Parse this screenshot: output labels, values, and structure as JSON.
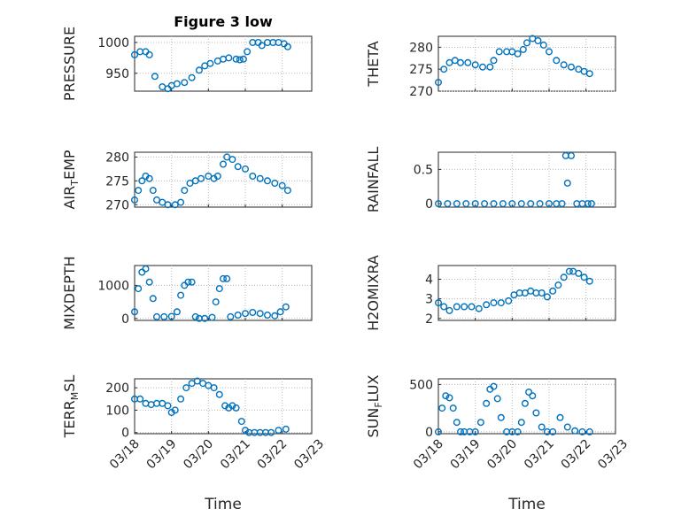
{
  "figure": {
    "title": "Figure 3 low",
    "xlabel": "Time"
  },
  "style": {
    "marker_color": "#0072BD"
  },
  "chart_data": [
    {
      "type": "scatter",
      "marker": "circle",
      "grid": true,
      "title": "Figure 3 low",
      "ylabel": "PRESSURE",
      "xlim": [
        "03/18",
        "03/22.8"
      ],
      "ylim": [
        921,
        1010
      ],
      "yticks": [
        950,
        1000
      ],
      "x": [
        "03/18.00",
        "03/18.15",
        "03/18.30",
        "03/18.40",
        "03/18.55",
        "03/18.75",
        "03/18.90",
        "03/19.00",
        "03/19.15",
        "03/19.35",
        "03/19.55",
        "03/19.75",
        "03/19.90",
        "03/20.05",
        "03/20.25",
        "03/20.40",
        "03/20.55",
        "03/20.75",
        "03/20.85",
        "03/20.95",
        "03/21.05",
        "03/21.20",
        "03/21.35",
        "03/21.45",
        "03/21.60",
        "03/21.75",
        "03/21.90",
        "03/22.05",
        "03/22.15"
      ],
      "y": [
        980,
        985,
        985,
        980,
        945,
        928,
        925,
        930,
        933,
        935,
        943,
        955,
        962,
        966,
        970,
        973,
        975,
        973,
        972,
        973,
        985,
        1000,
        1000,
        995,
        1000,
        1000,
        1000,
        998,
        993
      ]
    },
    {
      "type": "scatter",
      "marker": "circle",
      "grid": true,
      "ylabel": "THETA",
      "xlim": [
        "03/18",
        "03/22.8"
      ],
      "ylim": [
        270,
        282.5
      ],
      "yticks": [
        270,
        275,
        280
      ],
      "x": [
        "03/18.00",
        "03/18.15",
        "03/18.30",
        "03/18.45",
        "03/18.60",
        "03/18.80",
        "03/19.00",
        "03/19.20",
        "03/19.40",
        "03/19.50",
        "03/19.65",
        "03/19.85",
        "03/20.00",
        "03/20.15",
        "03/20.30",
        "03/20.40",
        "03/20.55",
        "03/20.70",
        "03/20.85",
        "03/21.00",
        "03/21.20",
        "03/21.40",
        "03/21.60",
        "03/21.80",
        "03/21.95",
        "03/22.10"
      ],
      "y": [
        272,
        275,
        276.5,
        277,
        276.5,
        276.5,
        276,
        275.5,
        275.5,
        277,
        279,
        279,
        279,
        278.5,
        279.5,
        281,
        282,
        281.5,
        280.5,
        279,
        277,
        276,
        275.5,
        275,
        274.5,
        274
      ]
    },
    {
      "type": "scatter",
      "marker": "circle",
      "grid": true,
      "ylabel": "AIR_TEMP",
      "xlim": [
        "03/18",
        "03/22.8"
      ],
      "ylim": [
        269.5,
        281
      ],
      "yticks": [
        270,
        275,
        280
      ],
      "x": [
        "03/18.00",
        "03/18.10",
        "03/18.20",
        "03/18.30",
        "03/18.40",
        "03/18.50",
        "03/18.60",
        "03/18.75",
        "03/18.90",
        "03/19.10",
        "03/19.25",
        "03/19.35",
        "03/19.50",
        "03/19.65",
        "03/19.80",
        "03/20.00",
        "03/20.15",
        "03/20.25",
        "03/20.40",
        "03/20.50",
        "03/20.65",
        "03/20.80",
        "03/21.00",
        "03/21.20",
        "03/21.40",
        "03/21.60",
        "03/21.80",
        "03/22.00",
        "03/22.15"
      ],
      "y": [
        271,
        273,
        275,
        276,
        275.5,
        273,
        271,
        270.5,
        270,
        270,
        270.5,
        273,
        274.5,
        275,
        275.5,
        276,
        275.5,
        276,
        278.5,
        280,
        279.5,
        278,
        277.5,
        276,
        275.5,
        275,
        274.5,
        274,
        273
      ]
    },
    {
      "type": "scatter",
      "marker": "circle",
      "grid": true,
      "ylabel": "RAINFALL",
      "xlim": [
        "03/18",
        "03/22.8"
      ],
      "ylim": [
        -0.05,
        0.75
      ],
      "yticks": [
        0,
        0.5
      ],
      "x": [
        "03/18.00",
        "03/18.25",
        "03/18.50",
        "03/18.75",
        "03/19.00",
        "03/19.25",
        "03/19.50",
        "03/19.75",
        "03/20.00",
        "03/20.25",
        "03/20.50",
        "03/20.75",
        "03/21.00",
        "03/21.20",
        "03/21.35",
        "03/21.45",
        "03/21.50",
        "03/21.60",
        "03/21.75",
        "03/21.90",
        "03/22.05",
        "03/22.15"
      ],
      "y": [
        0,
        0,
        0,
        0,
        0,
        0,
        0,
        0,
        0,
        0,
        0,
        0,
        0,
        0,
        0,
        0.7,
        0.3,
        0.7,
        0,
        0,
        0,
        0
      ]
    },
    {
      "type": "scatter",
      "marker": "circle",
      "grid": true,
      "ylabel": "MIXDEPTH",
      "xlim": [
        "03/18",
        "03/22.8"
      ],
      "ylim": [
        -60,
        1600
      ],
      "yticks": [
        0,
        1000
      ],
      "x": [
        "03/18.00",
        "03/18.10",
        "03/18.20",
        "03/18.30",
        "03/18.40",
        "03/18.50",
        "03/18.60",
        "03/18.80",
        "03/19.00",
        "03/19.15",
        "03/19.25",
        "03/19.35",
        "03/19.45",
        "03/19.55",
        "03/19.65",
        "03/19.75",
        "03/19.90",
        "03/20.10",
        "03/20.20",
        "03/20.30",
        "03/20.40",
        "03/20.50",
        "03/20.60",
        "03/20.80",
        "03/21.00",
        "03/21.20",
        "03/21.40",
        "03/21.60",
        "03/21.80",
        "03/21.95",
        "03/22.10"
      ],
      "y": [
        200,
        900,
        1400,
        1500,
        1100,
        600,
        50,
        50,
        60,
        200,
        700,
        1000,
        1100,
        1100,
        50,
        0,
        0,
        30,
        500,
        900,
        1200,
        1200,
        50,
        100,
        150,
        180,
        150,
        100,
        80,
        200,
        350
      ]
    },
    {
      "type": "scatter",
      "marker": "circle",
      "grid": true,
      "ylabel": "H2OMIXRA",
      "xlim": [
        "03/18",
        "03/22.8"
      ],
      "ylim": [
        1.9,
        4.7
      ],
      "yticks": [
        2,
        3,
        4
      ],
      "x": [
        "03/18.00",
        "03/18.15",
        "03/18.30",
        "03/18.50",
        "03/18.70",
        "03/18.90",
        "03/19.10",
        "03/19.30",
        "03/19.50",
        "03/19.70",
        "03/19.90",
        "03/20.05",
        "03/20.20",
        "03/20.35",
        "03/20.50",
        "03/20.65",
        "03/20.80",
        "03/20.95",
        "03/21.10",
        "03/21.25",
        "03/21.40",
        "03/21.55",
        "03/21.65",
        "03/21.80",
        "03/21.95",
        "03/22.10"
      ],
      "y": [
        2.8,
        2.6,
        2.4,
        2.6,
        2.6,
        2.6,
        2.5,
        2.7,
        2.8,
        2.8,
        2.9,
        3.2,
        3.3,
        3.3,
        3.4,
        3.3,
        3.3,
        3.1,
        3.4,
        3.7,
        4.1,
        4.4,
        4.4,
        4.3,
        4.1,
        3.9
      ]
    },
    {
      "type": "scatter",
      "marker": "circle",
      "grid": true,
      "ylabel": "TERR_MSL",
      "xlim": [
        "03/18",
        "03/22.8"
      ],
      "ylim": [
        -5,
        240
      ],
      "yticks": [
        0,
        100,
        200
      ],
      "x": [
        "03/18.00",
        "03/18.15",
        "03/18.30",
        "03/18.45",
        "03/18.60",
        "03/18.75",
        "03/18.90",
        "03/19.00",
        "03/19.10",
        "03/19.25",
        "03/19.40",
        "03/19.55",
        "03/19.70",
        "03/19.85",
        "03/20.00",
        "03/20.15",
        "03/20.30",
        "03/20.45",
        "03/20.55",
        "03/20.65",
        "03/20.75",
        "03/20.90",
        "03/21.00",
        "03/21.10",
        "03/21.25",
        "03/21.40",
        "03/21.55",
        "03/21.70",
        "03/21.90",
        "03/22.10"
      ],
      "y": [
        150,
        150,
        130,
        125,
        130,
        130,
        120,
        90,
        100,
        150,
        200,
        220,
        230,
        220,
        210,
        200,
        170,
        120,
        110,
        120,
        110,
        50,
        10,
        0,
        0,
        0,
        0,
        0,
        10,
        15
      ]
    },
    {
      "type": "scatter",
      "marker": "circle",
      "grid": true,
      "ylabel": "SUN_FLUX",
      "xlim": [
        "03/18",
        "03/22.8"
      ],
      "ylim": [
        -20,
        560
      ],
      "yticks": [
        0,
        500
      ],
      "x": [
        "03/18.00",
        "03/18.10",
        "03/18.20",
        "03/18.30",
        "03/18.40",
        "03/18.50",
        "03/18.60",
        "03/18.70",
        "03/18.85",
        "03/19.00",
        "03/19.15",
        "03/19.30",
        "03/19.40",
        "03/19.50",
        "03/19.60",
        "03/19.70",
        "03/19.85",
        "03/20.00",
        "03/20.15",
        "03/20.25",
        "03/20.35",
        "03/20.45",
        "03/20.55",
        "03/20.65",
        "03/20.80",
        "03/20.95",
        "03/21.10",
        "03/21.30",
        "03/21.50",
        "03/21.70",
        "03/21.90",
        "03/22.10"
      ],
      "y": [
        0,
        250,
        380,
        360,
        250,
        100,
        0,
        0,
        0,
        0,
        100,
        300,
        450,
        480,
        350,
        150,
        0,
        0,
        0,
        100,
        300,
        420,
        380,
        200,
        50,
        0,
        0,
        150,
        50,
        10,
        0,
        0
      ]
    }
  ],
  "xticks": [
    "03/18",
    "03/19",
    "03/20",
    "03/21",
    "03/22",
    "03/23"
  ]
}
